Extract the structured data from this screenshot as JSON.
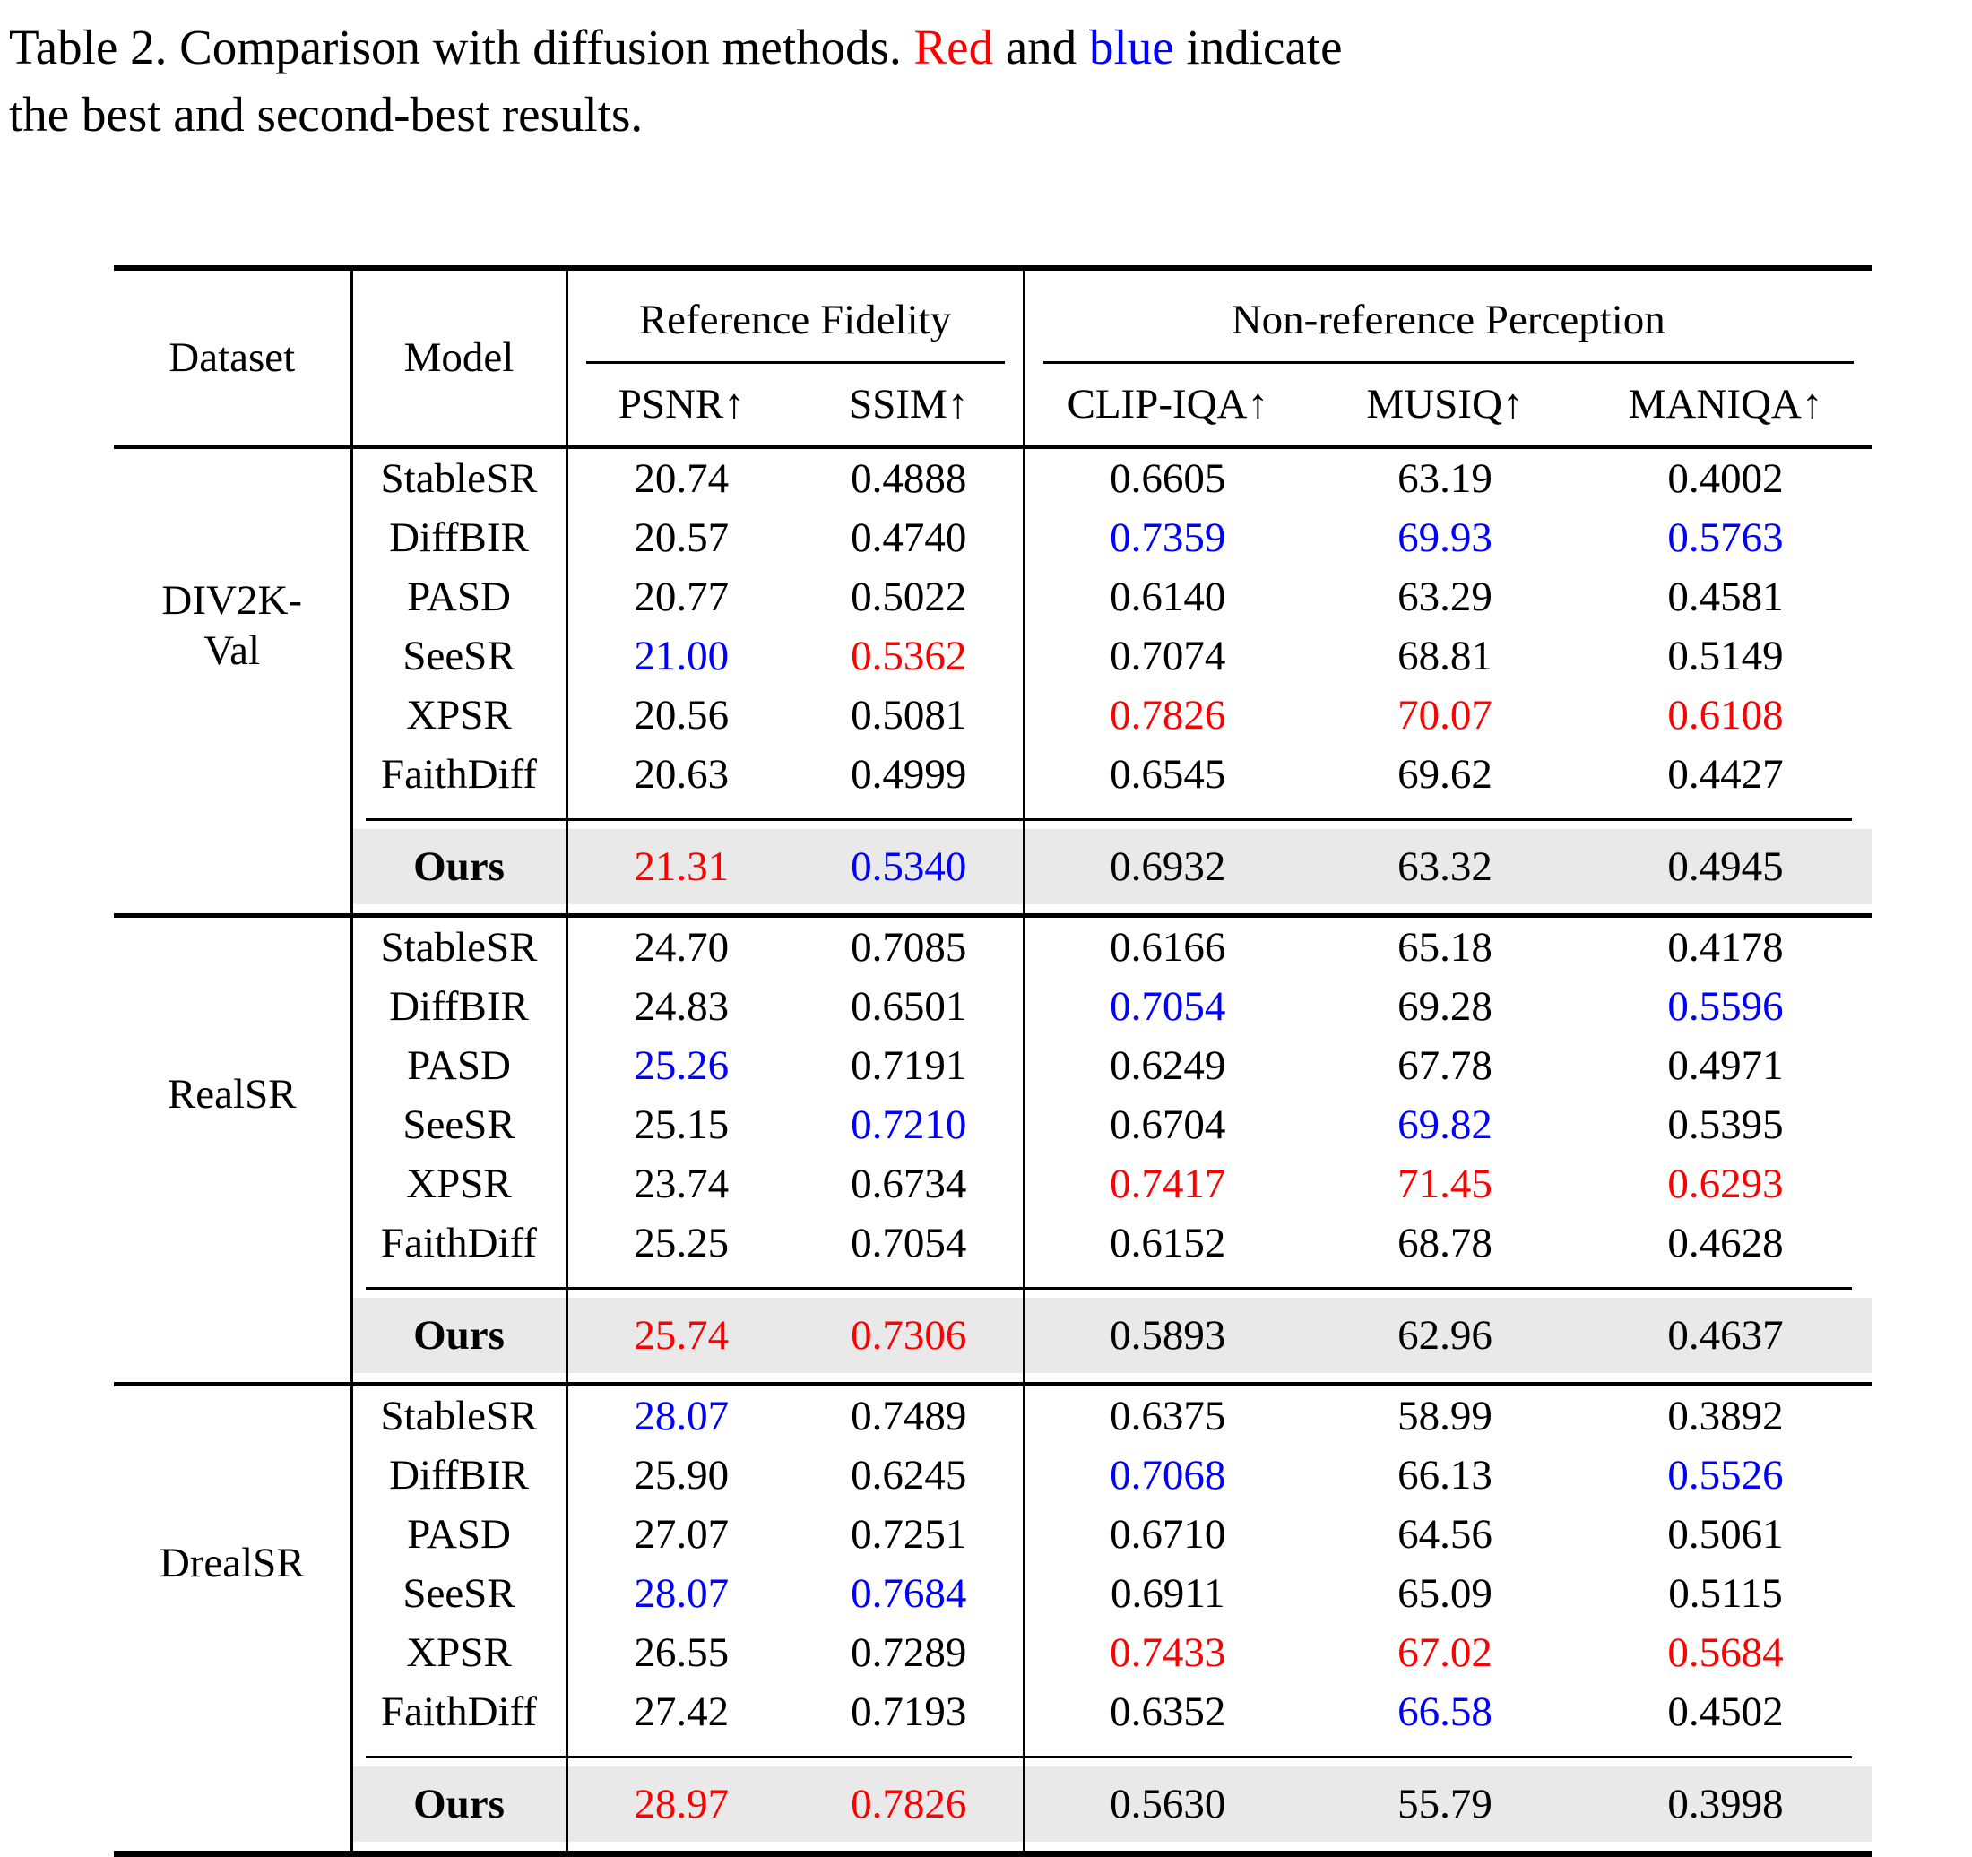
{
  "caption": {
    "line1_pre": "Table 2. Comparison with diffusion methods. ",
    "red_word": "Red",
    "red_color": "best",
    "mid": " and ",
    "blue_word": "blue",
    "blue_color": "second",
    "line1_post": " indicate",
    "line2": "the best and second-best results."
  },
  "colors": {
    "best": "#ff0000",
    "second": "#0000ff",
    "ours_row_bg": "#e9e9e9",
    "rule": "#000000"
  },
  "header": {
    "dataset": "Dataset",
    "model": "Model",
    "group_fidelity": "Reference Fidelity",
    "group_perception": "Non-reference Perception",
    "metrics": [
      "PSNR↑",
      "SSIM↑",
      "CLIP-IQA↑",
      "MUSIQ↑",
      "MANIQA↑"
    ]
  },
  "blocks": [
    {
      "dataset_line1": "DIV2K-",
      "dataset_line2": "Val",
      "rows": [
        {
          "model": "StableSR",
          "values": [
            "20.74",
            "0.4888",
            "0.6605",
            "63.19",
            "0.4002"
          ]
        },
        {
          "model": "DiffBIR",
          "values": [
            "20.57",
            "0.4740",
            "0.7359",
            "69.93",
            "0.5763"
          ],
          "colors": [
            null,
            null,
            "second",
            "second",
            "second"
          ]
        },
        {
          "model": "PASD",
          "values": [
            "20.77",
            "0.5022",
            "0.6140",
            "63.29",
            "0.4581"
          ]
        },
        {
          "model": "SeeSR",
          "values": [
            "21.00",
            "0.5362",
            "0.7074",
            "68.81",
            "0.5149"
          ],
          "colors": [
            "second",
            "best",
            null,
            null,
            null
          ]
        },
        {
          "model": "XPSR",
          "values": [
            "20.56",
            "0.5081",
            "0.7826",
            "70.07",
            "0.6108"
          ],
          "colors": [
            null,
            null,
            "best",
            "best",
            "best"
          ]
        },
        {
          "model": "FaithDiff",
          "values": [
            "20.63",
            "0.4999",
            "0.6545",
            "69.62",
            "0.4427"
          ]
        }
      ],
      "ours": {
        "label": "Ours",
        "values": [
          "21.31",
          "0.5340",
          "0.6932",
          "63.32",
          "0.4945"
        ],
        "colors": [
          "best",
          "second",
          null,
          null,
          null
        ]
      }
    },
    {
      "dataset_line1": "RealSR",
      "dataset_line2": "",
      "rows": [
        {
          "model": "StableSR",
          "values": [
            "24.70",
            "0.7085",
            "0.6166",
            "65.18",
            "0.4178"
          ]
        },
        {
          "model": "DiffBIR",
          "values": [
            "24.83",
            "0.6501",
            "0.7054",
            "69.28",
            "0.5596"
          ],
          "colors": [
            null,
            null,
            "second",
            null,
            "second"
          ]
        },
        {
          "model": "PASD",
          "values": [
            "25.26",
            "0.7191",
            "0.6249",
            "67.78",
            "0.4971"
          ],
          "colors": [
            "second",
            null,
            null,
            null,
            null
          ]
        },
        {
          "model": "SeeSR",
          "values": [
            "25.15",
            "0.7210",
            "0.6704",
            "69.82",
            "0.5395"
          ],
          "colors": [
            null,
            "second",
            null,
            "second",
            null
          ]
        },
        {
          "model": "XPSR",
          "values": [
            "23.74",
            "0.6734",
            "0.7417",
            "71.45",
            "0.6293"
          ],
          "colors": [
            null,
            null,
            "best",
            "best",
            "best"
          ]
        },
        {
          "model": "FaithDiff",
          "values": [
            "25.25",
            "0.7054",
            "0.6152",
            "68.78",
            "0.4628"
          ]
        }
      ],
      "ours": {
        "label": "Ours",
        "values": [
          "25.74",
          "0.7306",
          "0.5893",
          "62.96",
          "0.4637"
        ],
        "colors": [
          "best",
          "best",
          null,
          null,
          null
        ]
      }
    },
    {
      "dataset_line1": "DrealSR",
      "dataset_line2": "",
      "rows": [
        {
          "model": "StableSR",
          "values": [
            "28.07",
            "0.7489",
            "0.6375",
            "58.99",
            "0.3892"
          ],
          "colors": [
            "second",
            null,
            null,
            null,
            null
          ]
        },
        {
          "model": "DiffBIR",
          "values": [
            "25.90",
            "0.6245",
            "0.7068",
            "66.13",
            "0.5526"
          ],
          "colors": [
            null,
            null,
            "second",
            null,
            "second"
          ]
        },
        {
          "model": "PASD",
          "values": [
            "27.07",
            "0.7251",
            "0.6710",
            "64.56",
            "0.5061"
          ]
        },
        {
          "model": "SeeSR",
          "values": [
            "28.07",
            "0.7684",
            "0.6911",
            "65.09",
            "0.5115"
          ],
          "colors": [
            "second",
            "second",
            null,
            null,
            null
          ]
        },
        {
          "model": "XPSR",
          "values": [
            "26.55",
            "0.7289",
            "0.7433",
            "67.02",
            "0.5684"
          ],
          "colors": [
            null,
            null,
            "best",
            "best",
            "best"
          ]
        },
        {
          "model": "FaithDiff",
          "values": [
            "27.42",
            "0.7193",
            "0.6352",
            "66.58",
            "0.4502"
          ],
          "colors": [
            null,
            null,
            null,
            "second",
            null
          ]
        }
      ],
      "ours": {
        "label": "Ours",
        "values": [
          "28.97",
          "0.7826",
          "0.5630",
          "55.79",
          "0.3998"
        ],
        "colors": [
          "best",
          "best",
          null,
          null,
          null
        ]
      }
    }
  ]
}
